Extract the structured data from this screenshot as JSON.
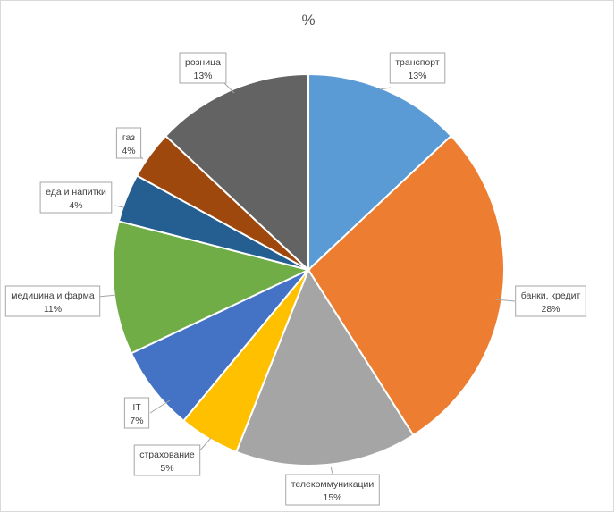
{
  "chart_data": {
    "type": "pie",
    "title": "%",
    "start_angle_deg": 0,
    "direction": "clockwise",
    "slices": [
      {
        "label": "транспорт",
        "value": 13,
        "display": "13%",
        "color": "#5B9BD5"
      },
      {
        "label": "банки, кредит",
        "value": 28,
        "display": "28%",
        "color": "#ED7D31"
      },
      {
        "label": "телекоммуникации",
        "value": 15,
        "display": "15%",
        "color": "#A5A5A5"
      },
      {
        "label": "страхование",
        "value": 5,
        "display": "5%",
        "color": "#FFC000"
      },
      {
        "label": "IT",
        "value": 7,
        "display": "7%",
        "color": "#4472C4"
      },
      {
        "label": "медицина и фарма",
        "value": 11,
        "display": "11%",
        "color": "#70AD47"
      },
      {
        "label": "еда и напитки",
        "value": 4,
        "display": "4%",
        "color": "#255E91"
      },
      {
        "label": "газ",
        "value": 4,
        "display": "4%",
        "color": "#9E480E"
      },
      {
        "label": "розница",
        "value": 13,
        "display": "13%",
        "color": "#636363"
      }
    ]
  }
}
